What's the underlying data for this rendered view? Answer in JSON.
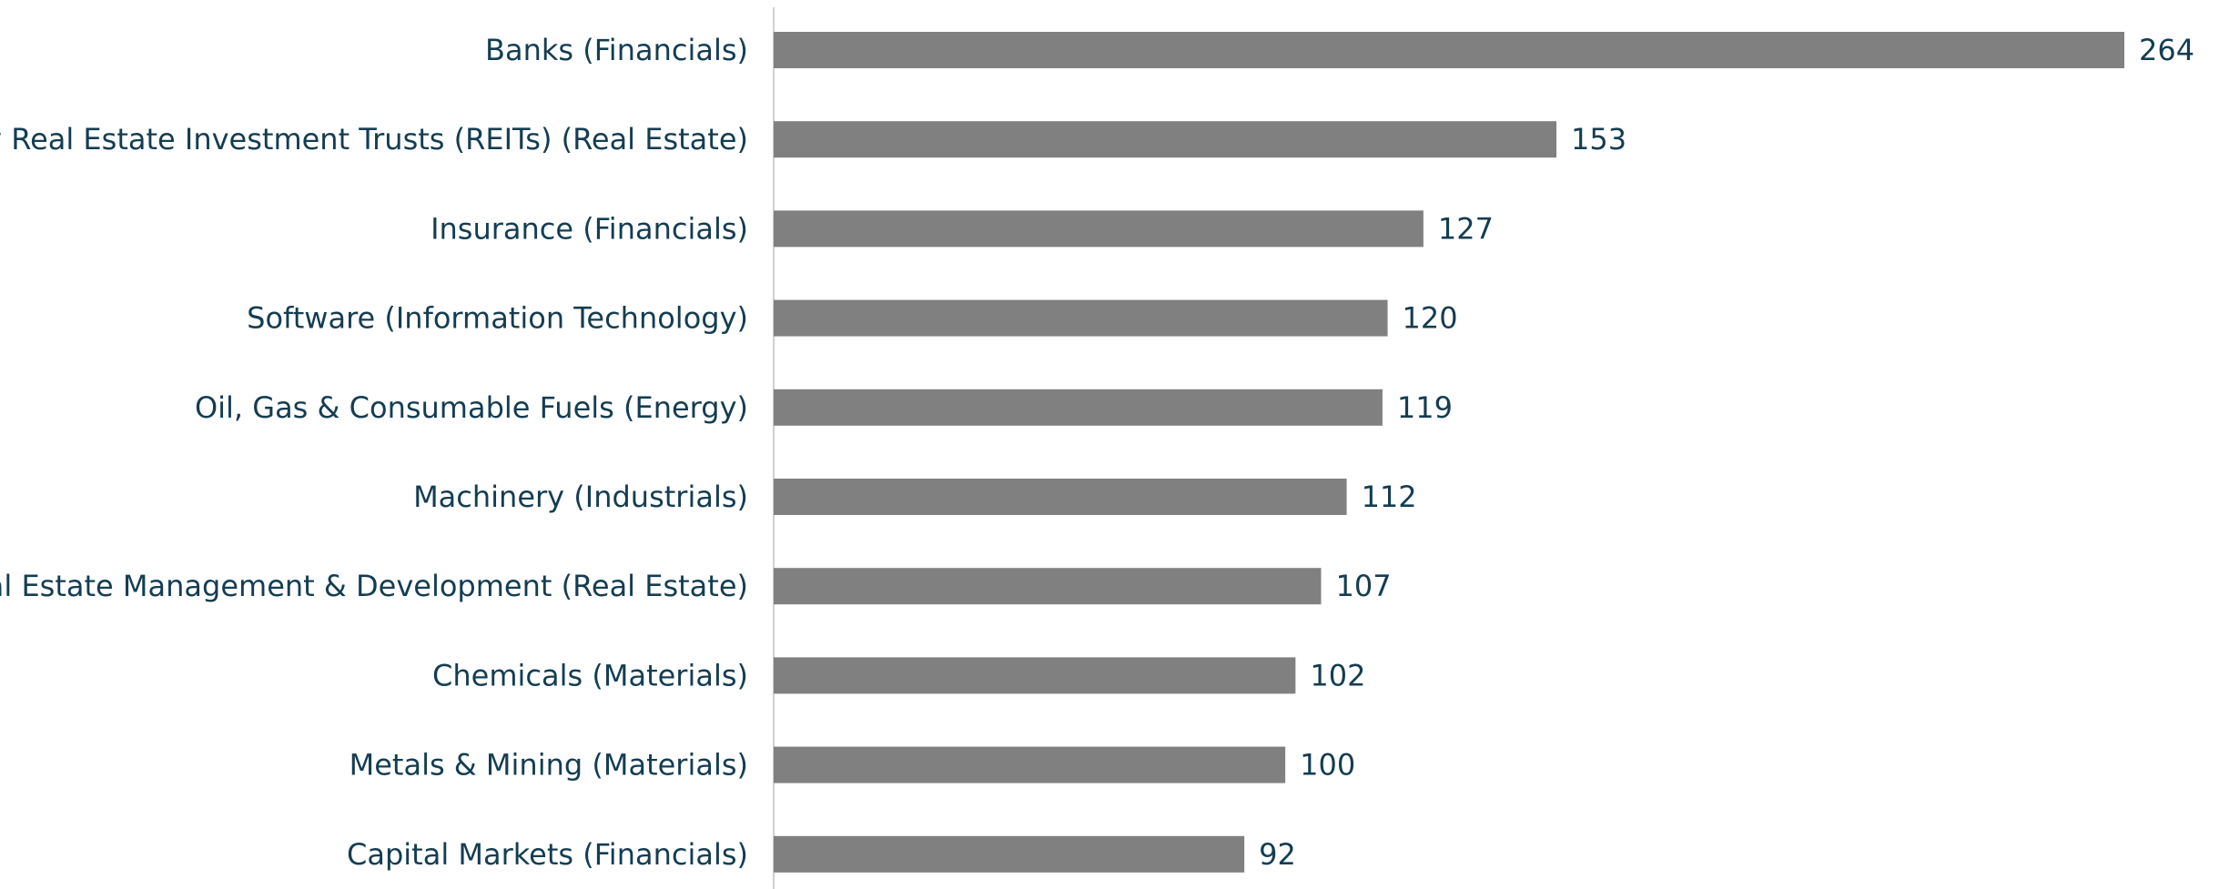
{
  "chart_data": {
    "type": "bar",
    "orientation": "horizontal",
    "title": "",
    "xlabel": "",
    "ylabel": "",
    "categories": [
      "Banks (Financials)",
      "Equity Real Estate Investment Trusts (REITs) (Real Estate)",
      "Insurance (Financials)",
      "Software (Information Technology)",
      "Oil, Gas & Consumable Fuels (Energy)",
      "Machinery (Industrials)",
      "Real Estate Management & Development (Real Estate)",
      "Chemicals (Materials)",
      "Metals & Mining (Materials)",
      "Capital Markets (Financials)"
    ],
    "values": [
      264,
      153,
      127,
      120,
      119,
      112,
      107,
      102,
      100,
      92
    ],
    "data_labels": [
      "264",
      "153",
      "127",
      "120",
      "119",
      "112",
      "107",
      "102",
      "100",
      "92"
    ],
    "xlim": [
      0,
      264
    ],
    "grid": false,
    "legend": "none",
    "colors": {
      "bar": "#808080",
      "text": "#143d52",
      "axis": "#d0d0d0"
    }
  }
}
